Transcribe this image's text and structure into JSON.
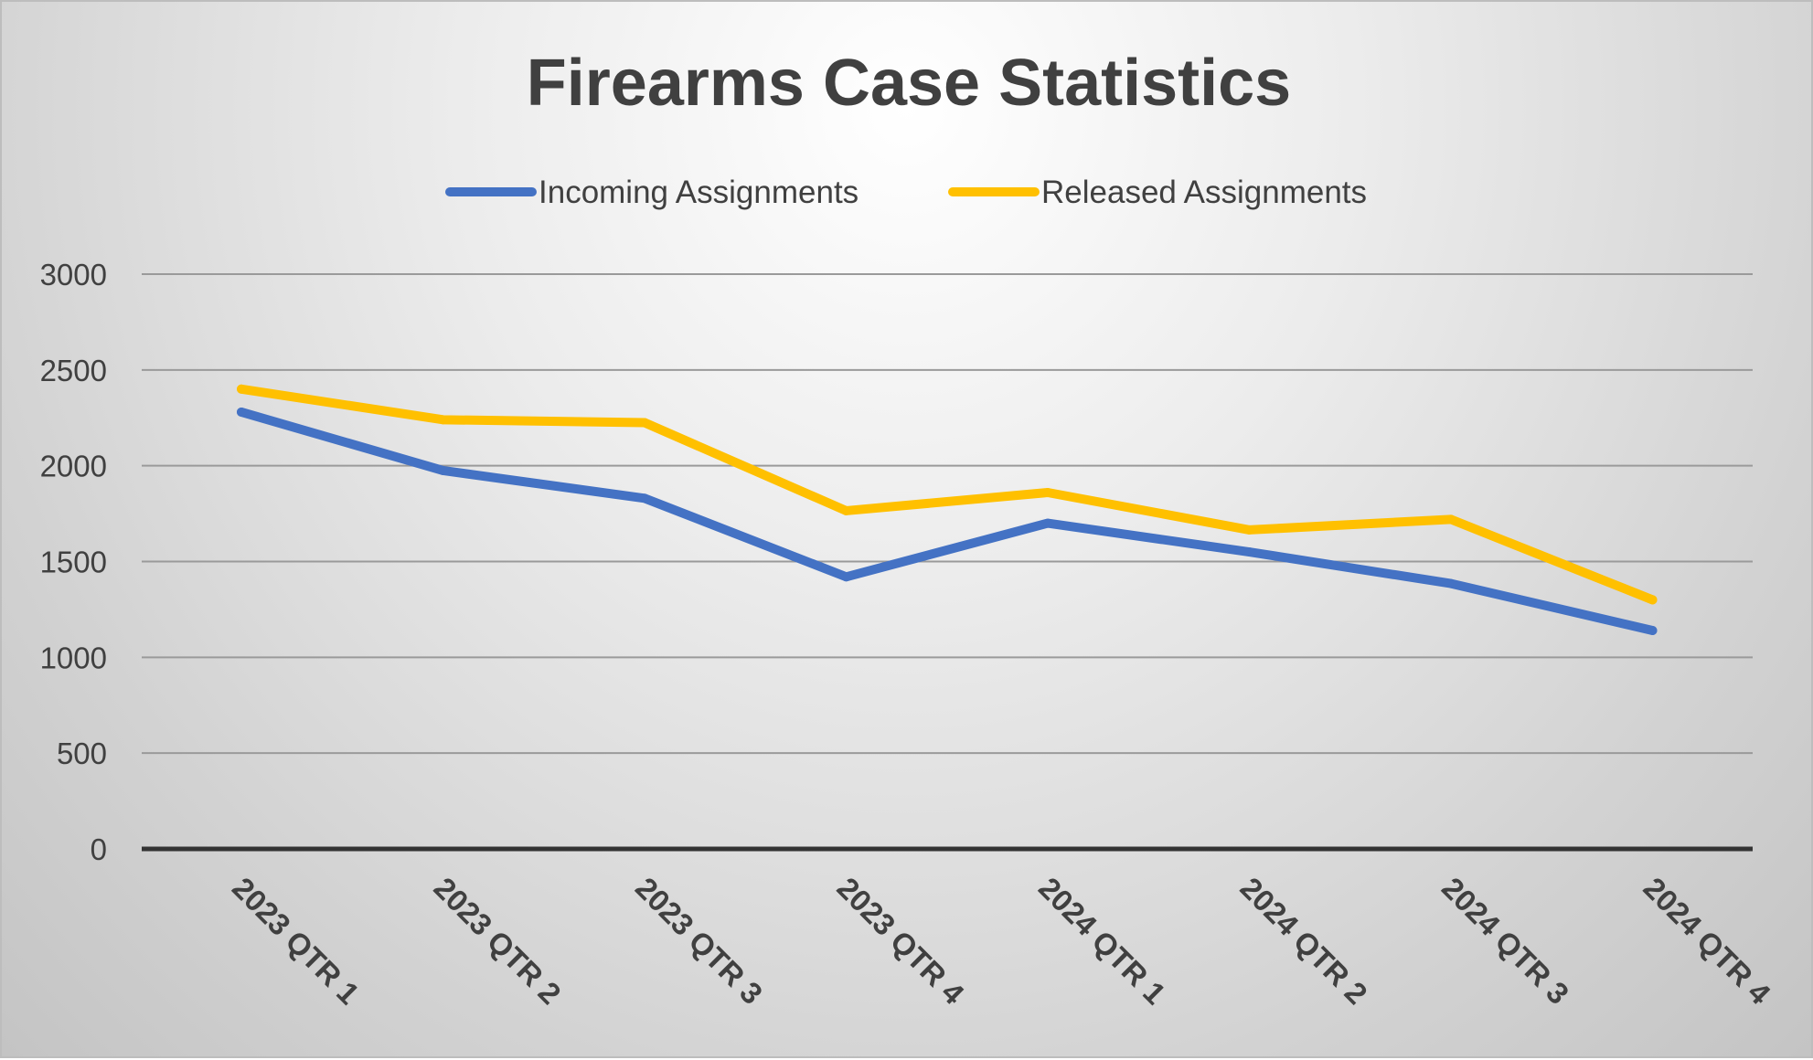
{
  "chart_data": {
    "type": "line",
    "title": "Firearms Case Statistics",
    "xlabel": "",
    "ylabel": "",
    "categories": [
      "2023 QTR 1",
      "2023 QTR 2",
      "2023 QTR 3",
      "2023 QTR 4",
      "2024 QTR 1",
      "2024 QTR 2",
      "2024 QTR 3",
      "2024 QTR 4"
    ],
    "ylim": [
      0,
      3000
    ],
    "yticks": [
      0,
      500,
      1000,
      1500,
      2000,
      2500,
      3000
    ],
    "grid": true,
    "legend_position": "top",
    "series": [
      {
        "name": "Incoming Assignments",
        "color": "#4472C4",
        "values": [
          2280,
          1975,
          1830,
          1420,
          1700,
          1550,
          1385,
          1140
        ]
      },
      {
        "name": "Released Assignments",
        "color": "#FFC000",
        "values": [
          2400,
          2240,
          2225,
          1765,
          1860,
          1665,
          1720,
          1300
        ]
      }
    ]
  }
}
